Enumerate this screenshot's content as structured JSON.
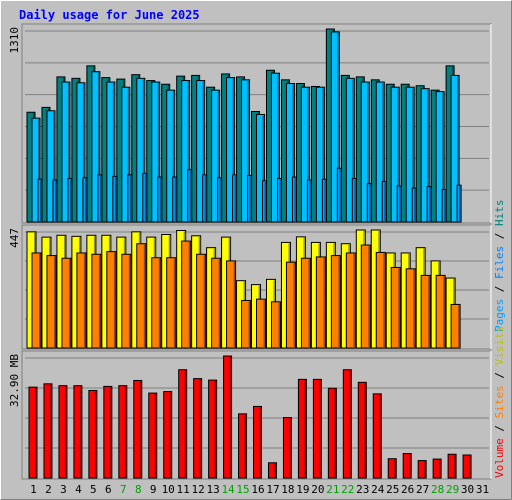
{
  "chart_data": {
    "type": "bar",
    "title": "Daily usage for June 2025",
    "days": [
      "1",
      "2",
      "3",
      "4",
      "5",
      "6",
      "7",
      "8",
      "9",
      "10",
      "11",
      "12",
      "13",
      "14",
      "15",
      "16",
      "17",
      "18",
      "19",
      "20",
      "21",
      "22",
      "23",
      "24",
      "25",
      "26",
      "27",
      "28",
      "29",
      "30",
      "31"
    ],
    "weekend_days": [
      "7",
      "8",
      "14",
      "15",
      "21",
      "22",
      "28",
      "29"
    ],
    "hits_panel": {
      "max_label": "1310",
      "ymax": 1310,
      "series": [
        {
          "name": "Hits",
          "color": "#008080",
          "values": [
            745,
            778,
            985,
            975,
            1060,
            980,
            970,
            1000,
            960,
            935,
            990,
            995,
            915,
            1005,
            985,
            750,
            1030,
            965,
            940,
            920,
            1310,
            995,
            985,
            965,
            935,
            935,
            925,
            895,
            1060
          ]
        },
        {
          "name": "Files",
          "color": "#00c0ff",
          "values": [
            705,
            755,
            950,
            945,
            1020,
            950,
            915,
            975,
            950,
            895,
            960,
            960,
            895,
            980,
            965,
            730,
            1010,
            940,
            915,
            915,
            1290,
            975,
            950,
            950,
            915,
            915,
            905,
            885,
            995
          ]
        },
        {
          "name": "Pages",
          "color": "#00a0ff",
          "values": [
            290,
            285,
            295,
            300,
            320,
            310,
            320,
            330,
            305,
            305,
            355,
            320,
            300,
            320,
            315,
            280,
            295,
            305,
            285,
            290,
            365,
            295,
            260,
            275,
            245,
            230,
            240,
            220,
            250
          ]
        }
      ]
    },
    "visits_panel": {
      "max_label": "447",
      "ymax": 447,
      "series": [
        {
          "name": "Visits",
          "color": "#ffff00",
          "values": [
            440,
            420,
            427,
            423,
            427,
            427,
            420,
            440,
            420,
            430,
            445,
            425,
            380,
            420,
            255,
            240,
            260,
            400,
            421,
            400,
            400,
            395,
            447,
            447,
            360,
            360,
            380,
            330,
            265
          ]
        },
        {
          "name": "Sites",
          "color": "#ff8000",
          "values": [
            360,
            350,
            340,
            360,
            355,
            365,
            355,
            395,
            342,
            342,
            405,
            355,
            340,
            330,
            180,
            185,
            175,
            325,
            340,
            345,
            350,
            360,
            390,
            362,
            305,
            300,
            275,
            275,
            165
          ]
        }
      ]
    },
    "volume_panel": {
      "max_label": "32.90 MB",
      "ymax": 32.9,
      "series": [
        {
          "name": "Volume",
          "color": "#ff0000",
          "values": [
            24.5,
            25.4,
            24.9,
            24.9,
            23.6,
            24.7,
            24.9,
            26.3,
            22.9,
            23.3,
            29.2,
            26.8,
            26.4,
            32.9,
            17.3,
            19.3,
            4.1,
            16.3,
            26.6,
            26.6,
            24.2,
            29.2,
            25.8,
            22.7,
            5.2,
            6.6,
            4.7,
            5.1,
            6.4,
            6.2
          ]
        }
      ]
    },
    "right_legend": {
      "top": [
        "Pages",
        "/",
        "Files",
        "/",
        "Hits"
      ],
      "bottom": [
        "Volume",
        "/",
        "Sites",
        "/",
        "Visits"
      ]
    }
  }
}
